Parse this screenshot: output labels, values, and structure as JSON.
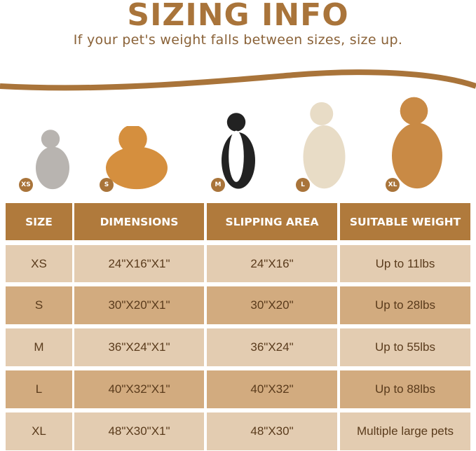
{
  "header": {
    "title": "SIZING INFO",
    "subtitle": "If your pet's weight falls between sizes, size up."
  },
  "colors": {
    "accent": "#b07a3c",
    "row_light": "#e3ccb1",
    "row_dark": "#d2ab7f"
  },
  "pets": [
    {
      "badge": "XS",
      "animal": "cat"
    },
    {
      "badge": "S",
      "animal": "corgi"
    },
    {
      "badge": "M",
      "animal": "border-collie"
    },
    {
      "badge": "L",
      "animal": "golden-retriever-light"
    },
    {
      "badge": "XL",
      "animal": "golden-retriever"
    }
  ],
  "table": {
    "headers": [
      "SIZE",
      "DIMENSIONS",
      "SLIPPING AREA",
      "SUITABLE WEIGHT"
    ],
    "rows": [
      [
        "XS",
        "24\"X16\"X1\"",
        "24\"X16\"",
        "Up to 11lbs"
      ],
      [
        "S",
        "30\"X20\"X1\"",
        "30\"X20\"",
        "Up to 28lbs"
      ],
      [
        "M",
        "36\"X24\"X1\"",
        "36\"X24\"",
        "Up to 55lbs"
      ],
      [
        "L",
        "40\"X32\"X1\"",
        "40\"X32\"",
        "Up to 88lbs"
      ],
      [
        "XL",
        "48\"X30\"X1\"",
        "48\"X30\"",
        "Multiple large pets"
      ]
    ]
  }
}
